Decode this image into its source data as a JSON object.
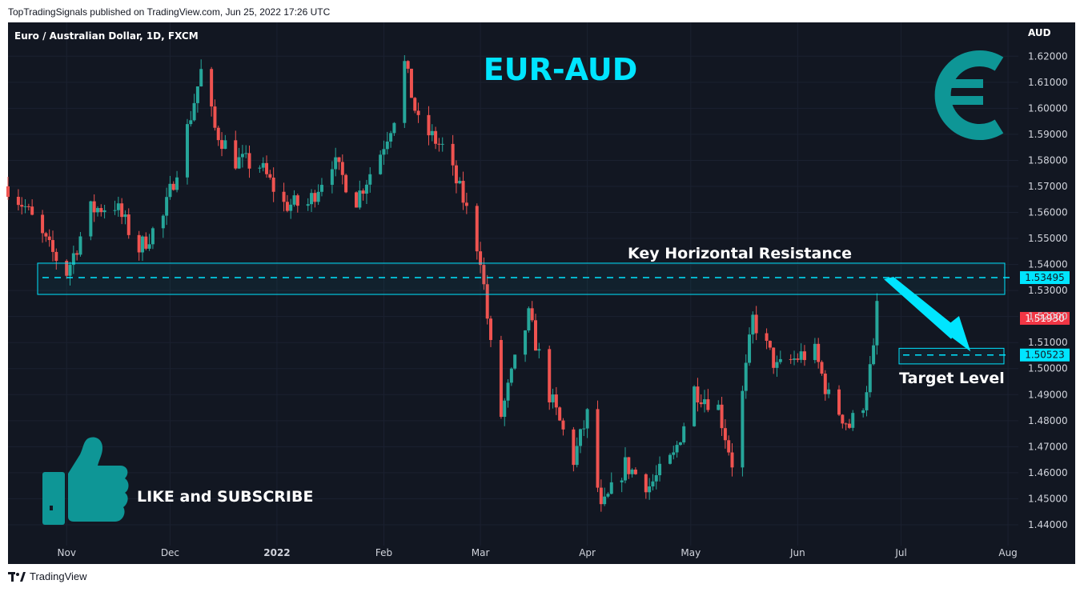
{
  "header": {
    "published_line": "TopTradingSignals published on TradingView.com, Jun 25, 2022 17:26 UTC"
  },
  "footer": {
    "brand": "TradingView"
  },
  "chart_data": {
    "type": "candlestick",
    "symbol_line": "Euro / Australian Dollar, 1D, FXCM",
    "title": "EUR-AUD",
    "currency_label": "AUD",
    "ylim": [
      1.432,
      1.633
    ],
    "y_ticks": [
      "1.62000",
      "1.61000",
      "1.60000",
      "1.59000",
      "1.58000",
      "1.57000",
      "1.56000",
      "1.55000",
      "1.54000",
      "1.53000",
      "1.52000",
      "1.51000",
      "1.50000",
      "1.49000",
      "1.48000",
      "1.47000",
      "1.46000",
      "1.45000",
      "1.44000"
    ],
    "x_ticks": [
      {
        "label": "Nov",
        "day": "2021-11-01"
      },
      {
        "label": "Dec",
        "day": "2021-12-01"
      },
      {
        "label": "2022",
        "day": "2022-01-01"
      },
      {
        "label": "Feb",
        "day": "2022-02-01"
      },
      {
        "label": "Mar",
        "day": "2022-03-01"
      },
      {
        "label": "Apr",
        "day": "2022-04-01"
      },
      {
        "label": "May",
        "day": "2022-05-01"
      },
      {
        "label": "Jun",
        "day": "2022-06-01"
      },
      {
        "label": "Jul",
        "day": "2022-07-01"
      },
      {
        "label": "Aug",
        "day": "2022-08-01"
      }
    ],
    "x_start": "2021-10-15",
    "x_end": "2022-08-04",
    "close_path": [
      {
        "date": "2021-10-15",
        "close": 1.57
      },
      {
        "date": "2021-10-20",
        "close": 1.562
      },
      {
        "date": "2021-10-27",
        "close": 1.546
      },
      {
        "date": "2021-11-01",
        "close": 1.537
      },
      {
        "date": "2021-11-08",
        "close": 1.561
      },
      {
        "date": "2021-11-15",
        "close": 1.563
      },
      {
        "date": "2021-11-22",
        "close": 1.546
      },
      {
        "date": "2021-11-29",
        "close": 1.558
      },
      {
        "date": "2021-12-06",
        "close": 1.592
      },
      {
        "date": "2021-12-10",
        "close": 1.614
      },
      {
        "date": "2021-12-14",
        "close": 1.592
      },
      {
        "date": "2021-12-20",
        "close": 1.58
      },
      {
        "date": "2021-12-27",
        "close": 1.578
      },
      {
        "date": "2022-01-03",
        "close": 1.563
      },
      {
        "date": "2022-01-10",
        "close": 1.563
      },
      {
        "date": "2022-01-17",
        "close": 1.58
      },
      {
        "date": "2022-01-24",
        "close": 1.565
      },
      {
        "date": "2022-01-31",
        "close": 1.583
      },
      {
        "date": "2022-02-04",
        "close": 1.597
      },
      {
        "date": "2022-02-07",
        "close": 1.617
      },
      {
        "date": "2022-02-11",
        "close": 1.594
      },
      {
        "date": "2022-02-18",
        "close": 1.585
      },
      {
        "date": "2022-02-24",
        "close": 1.565
      },
      {
        "date": "2022-03-01",
        "close": 1.543
      },
      {
        "date": "2022-03-04",
        "close": 1.508
      },
      {
        "date": "2022-03-07",
        "close": 1.482
      },
      {
        "date": "2022-03-11",
        "close": 1.502
      },
      {
        "date": "2022-03-15",
        "close": 1.52
      },
      {
        "date": "2022-03-21",
        "close": 1.49
      },
      {
        "date": "2022-03-28",
        "close": 1.465
      },
      {
        "date": "2022-04-01",
        "close": 1.482
      },
      {
        "date": "2022-04-05",
        "close": 1.445
      },
      {
        "date": "2022-04-12",
        "close": 1.463
      },
      {
        "date": "2022-04-19",
        "close": 1.455
      },
      {
        "date": "2022-04-26",
        "close": 1.466
      },
      {
        "date": "2022-05-02",
        "close": 1.492
      },
      {
        "date": "2022-05-09",
        "close": 1.485
      },
      {
        "date": "2022-05-13",
        "close": 1.464
      },
      {
        "date": "2022-05-16",
        "close": 1.49
      },
      {
        "date": "2022-05-19",
        "close": 1.519
      },
      {
        "date": "2022-05-26",
        "close": 1.5
      },
      {
        "date": "2022-06-02",
        "close": 1.505
      },
      {
        "date": "2022-06-06",
        "close": 1.506
      },
      {
        "date": "2022-06-10",
        "close": 1.489
      },
      {
        "date": "2022-06-16",
        "close": 1.478
      },
      {
        "date": "2022-06-20",
        "close": 1.487
      },
      {
        "date": "2022-06-23",
        "close": 1.506
      },
      {
        "date": "2022-06-24",
        "close": 1.525
      },
      {
        "date": "2022-06-25",
        "close": 1.5193
      }
    ],
    "resistance_zone": {
      "label": "Key Horizontal Resistance",
      "top": 1.5405,
      "bottom": 1.5285,
      "level": 1.53495
    },
    "target_zone": {
      "label": "Target Level",
      "top": 1.5078,
      "bottom": 1.5018,
      "level": 1.50523
    },
    "price_labels": [
      {
        "text": "1.53495",
        "value": 1.53495,
        "color": "#00e5ff"
      },
      {
        "text": "1.51930",
        "value": 1.5193,
        "color": "#f23645"
      },
      {
        "text": "1.50523",
        "value": 1.50523,
        "color": "#00e5ff"
      }
    ],
    "annotations": {
      "like_text": "LIKE and SUBSCRIBE"
    },
    "colors": {
      "up": "#26a69a",
      "down": "#ef5350",
      "accent": "#00e5ff",
      "icon": "#0e9696",
      "background": "#121722"
    },
    "icons": [
      "euro-icon",
      "thumbs-up-icon",
      "tradingview-logo-icon"
    ]
  }
}
